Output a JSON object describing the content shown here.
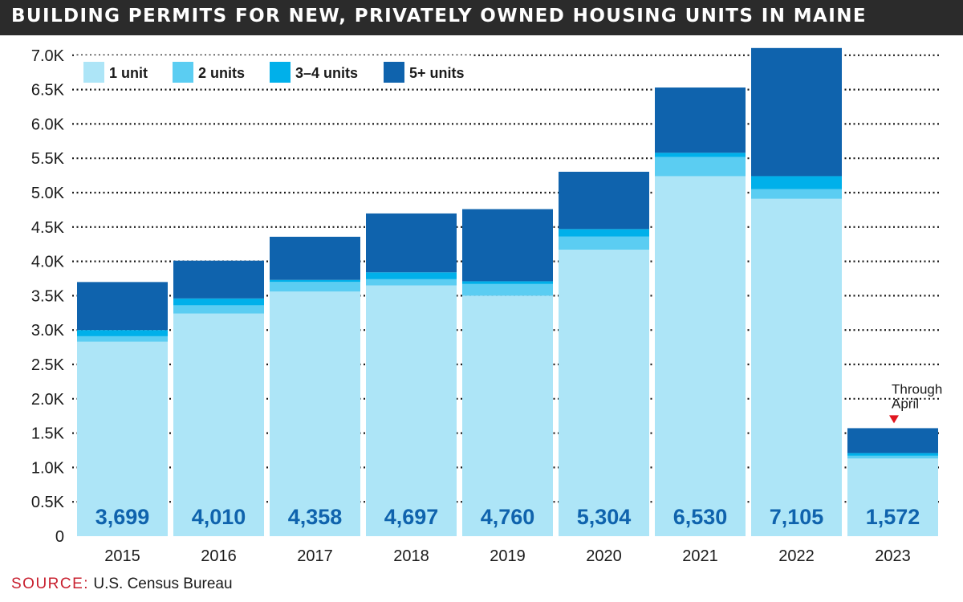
{
  "title": "BUILDING PERMITS FOR NEW, PRIVATELY OWNED HOUSING UNITS IN MAINE",
  "source": {
    "label": "SOURCE:",
    "text": "U.S. Census Bureau"
  },
  "annotation": {
    "line1": "Through",
    "line2": "April",
    "marker_color": "#e0151f"
  },
  "colors": {
    "1 unit": "#ade5f7",
    "2 units": "#5bcdf2",
    "3–4 units": "#00b0ea",
    "5+ units": "#0f63ad",
    "total_label": "#0f63ad",
    "title_bar": "#2b2b2b"
  },
  "chart_data": {
    "type": "bar",
    "stacked": true,
    "categories": [
      "2015",
      "2016",
      "2017",
      "2018",
      "2019",
      "2020",
      "2021",
      "2022",
      "2023"
    ],
    "series": [
      {
        "name": "1 unit",
        "values": [
          2830,
          3240,
          3560,
          3650,
          3500,
          4170,
          5240,
          4910,
          1130
        ]
      },
      {
        "name": "2 units",
        "values": [
          80,
          120,
          140,
          90,
          170,
          190,
          280,
          140,
          40
        ]
      },
      {
        "name": "3–4 units",
        "values": [
          90,
          100,
          30,
          100,
          40,
          110,
          60,
          190,
          40
        ]
      },
      {
        "name": "5+ units",
        "values": [
          699,
          550,
          628,
          857,
          1050,
          834,
          950,
          1865,
          362
        ]
      }
    ],
    "totals": [
      3699,
      4010,
      4358,
      4697,
      4760,
      5304,
      6530,
      7105,
      1572
    ],
    "total_labels": [
      "3,699",
      "4,010",
      "4,358",
      "4,697",
      "4,760",
      "5,304",
      "6,530",
      "7,105",
      "1,572"
    ],
    "y_ticks": [
      0,
      500,
      1000,
      1500,
      2000,
      2500,
      3000,
      3500,
      4000,
      4500,
      5000,
      5500,
      6000,
      6500,
      7000
    ],
    "y_tick_labels": [
      "0",
      "0.5K",
      "1.0K",
      "1.5K",
      "2.0K",
      "2.5K",
      "3.0K",
      "3.5K",
      "4.0K",
      "4.5K",
      "5.0K",
      "5.5K",
      "6.0K",
      "6.5K",
      "7.0K"
    ],
    "ylim": [
      0,
      7000
    ],
    "grid": true,
    "legend_position": "top-left",
    "xlabel": "",
    "ylabel": ""
  }
}
